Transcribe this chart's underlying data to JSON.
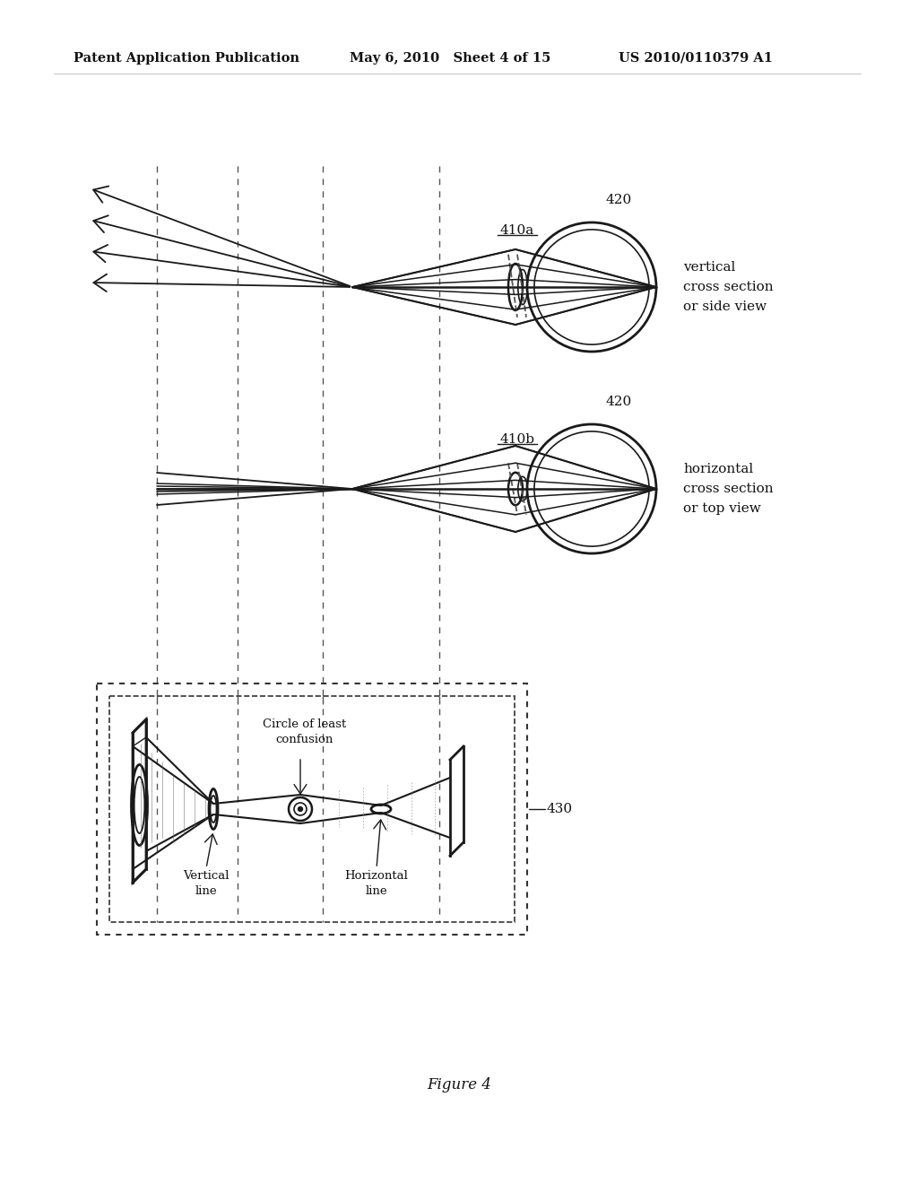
{
  "bg_color": "#ffffff",
  "header_left": "Patent Application Publication",
  "header_mid": "May 6, 2010   Sheet 4 of 15",
  "header_right": "US 2010/0110379 A1",
  "footer_label": "Figure 4",
  "label_410a": "410a",
  "label_410b": "410b",
  "label_420_1": "420",
  "label_420_2": "420",
  "label_430": "430",
  "label_vert": "vertical\ncross section\nor side view",
  "label_horiz": "horizontal\ncross section\nor top view",
  "label_circle_confusion": "Circle of least\nconfusion",
  "label_vertical_line": "Vertical\nline",
  "label_horizontal_line": "Horizontal\nline",
  "line_color": "#1a1a1a",
  "dashed_color": "#555555"
}
